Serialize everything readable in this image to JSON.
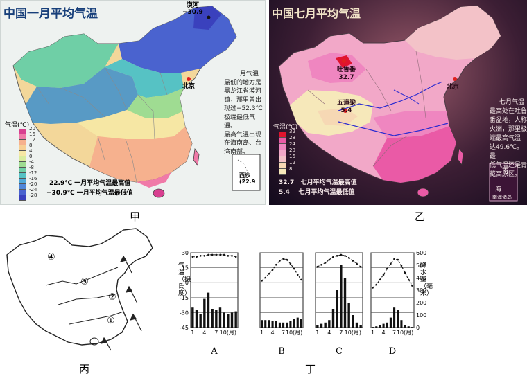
{
  "jia": {
    "title": "中国一月平均气温",
    "caption": "甲",
    "legend_title": "气温(℃)",
    "legend_ticks": [
      "20",
      "16",
      "12",
      "8",
      "4",
      "0",
      "-4",
      "-8",
      "-12",
      "-16",
      "-20",
      "-24",
      "-28"
    ],
    "legend_colors": [
      "#d84090",
      "#f07aa8",
      "#f6b18e",
      "#f7cf94",
      "#f6e7a4",
      "#d9ec9d",
      "#9fdc92",
      "#6fcfa6",
      "#56c2c4",
      "#4fa8d8",
      "#4f86d8",
      "#4a63cf",
      "#3a41bd"
    ],
    "note_lines": [
      "一月气温",
      "最低的地方是",
      "黑龙江省漠河",
      "镇，那里曾出",
      "现过−52.3℃",
      "极端最低气温。",
      "最高气温出现",
      "在海南岛、台",
      "湾南部。"
    ],
    "max_text": "22.9℃  一月平均气温最高值",
    "min_text": "−30.9℃  一月平均气温最低值",
    "mohe_name": "漠河",
    "mohe_val": "−30.9",
    "beijing": "北京",
    "xisha_name": "西沙",
    "xisha_val": "(22.9"
  },
  "yi": {
    "title": "中国七月平均气温",
    "caption": "乙",
    "legend_title": "气温(℃)",
    "legend_ticks": [
      "32",
      "28",
      "24",
      "20",
      "16",
      "12",
      "8"
    ],
    "legend_colors": [
      "#e0142e",
      "#ea5aa6",
      "#ef86c0",
      "#f2a8c8",
      "#f3c2c8",
      "#f6d8b4",
      "#f6e8ba"
    ],
    "note_lines": [
      "七月气温",
      "最高处在吐鲁",
      "番盆地，人称",
      "火洲，那里极",
      "端最高气温",
      "达49.6℃。最",
      "低气温还是青",
      "藏高原区。"
    ],
    "max_text": "七月平均气温最高值",
    "max_val": "32.7",
    "min_text": "七月平均气温最低值",
    "min_val": "5.4",
    "turpan_name": "吐鲁番",
    "turpan_val": "32.7",
    "wudaoliang_name": "五道梁",
    "wudaoliang_val": "5.4",
    "beijing": "北京",
    "inset_top": "南",
    "inset_mid": "海",
    "inset_bottom": "南海诸岛"
  },
  "bing": {
    "caption": "丙",
    "markers": [
      "①",
      "②",
      "③",
      "④"
    ]
  },
  "ding": {
    "caption": "丁",
    "left_axis_label": "气温（摄氏度）",
    "right_axis_label": "降水量（毫米）",
    "left_ticks": [
      "30",
      "15",
      "0",
      "-15",
      "-30",
      "-45"
    ],
    "right_ticks": [
      "600",
      "500",
      "400",
      "300",
      "200",
      "100",
      "0"
    ],
    "x_ticks": [
      "1",
      "4",
      "7",
      "10(月)"
    ],
    "station_labels": [
      "A",
      "B",
      "C",
      "D"
    ]
  },
  "chart_data": [
    {
      "type": "bar",
      "name": "A",
      "categories": [
        "1",
        "2",
        "3",
        "4",
        "5",
        "6",
        "7",
        "8",
        "9",
        "10",
        "11",
        "12"
      ],
      "temperature": [
        26,
        26,
        27,
        27,
        28,
        28,
        28,
        28,
        28,
        27,
        27,
        26
      ],
      "precipitation": [
        160,
        140,
        110,
        230,
        280,
        150,
        140,
        160,
        120,
        110,
        120,
        130
      ]
    },
    {
      "type": "bar",
      "name": "B",
      "categories": [
        "1",
        "2",
        "3",
        "4",
        "5",
        "6",
        "7",
        "8",
        "9",
        "10",
        "11",
        "12"
      ],
      "temperature": [
        2,
        5,
        9,
        13,
        18,
        22,
        24,
        23,
        19,
        14,
        8,
        3
      ],
      "precipitation": [
        60,
        60,
        60,
        50,
        50,
        40,
        40,
        40,
        50,
        70,
        80,
        70
      ]
    },
    {
      "type": "bar",
      "name": "C",
      "categories": [
        "1",
        "2",
        "3",
        "4",
        "5",
        "6",
        "7",
        "8",
        "9",
        "10",
        "11",
        "12"
      ],
      "temperature": [
        16,
        18,
        20,
        23,
        26,
        27,
        28,
        27,
        25,
        22,
        19,
        16
      ],
      "precipitation": [
        20,
        30,
        40,
        60,
        150,
        300,
        500,
        400,
        200,
        100,
        40,
        20
      ]
    },
    {
      "type": "bar",
      "name": "D",
      "categories": [
        "1",
        "2",
        "3",
        "4",
        "5",
        "6",
        "7",
        "8",
        "9",
        "10",
        "11",
        "12"
      ],
      "temperature": [
        -5,
        -2,
        3,
        8,
        14,
        19,
        24,
        23,
        17,
        10,
        3,
        -3
      ],
      "precipitation": [
        5,
        10,
        20,
        30,
        40,
        80,
        160,
        140,
        60,
        20,
        10,
        5
      ]
    }
  ]
}
